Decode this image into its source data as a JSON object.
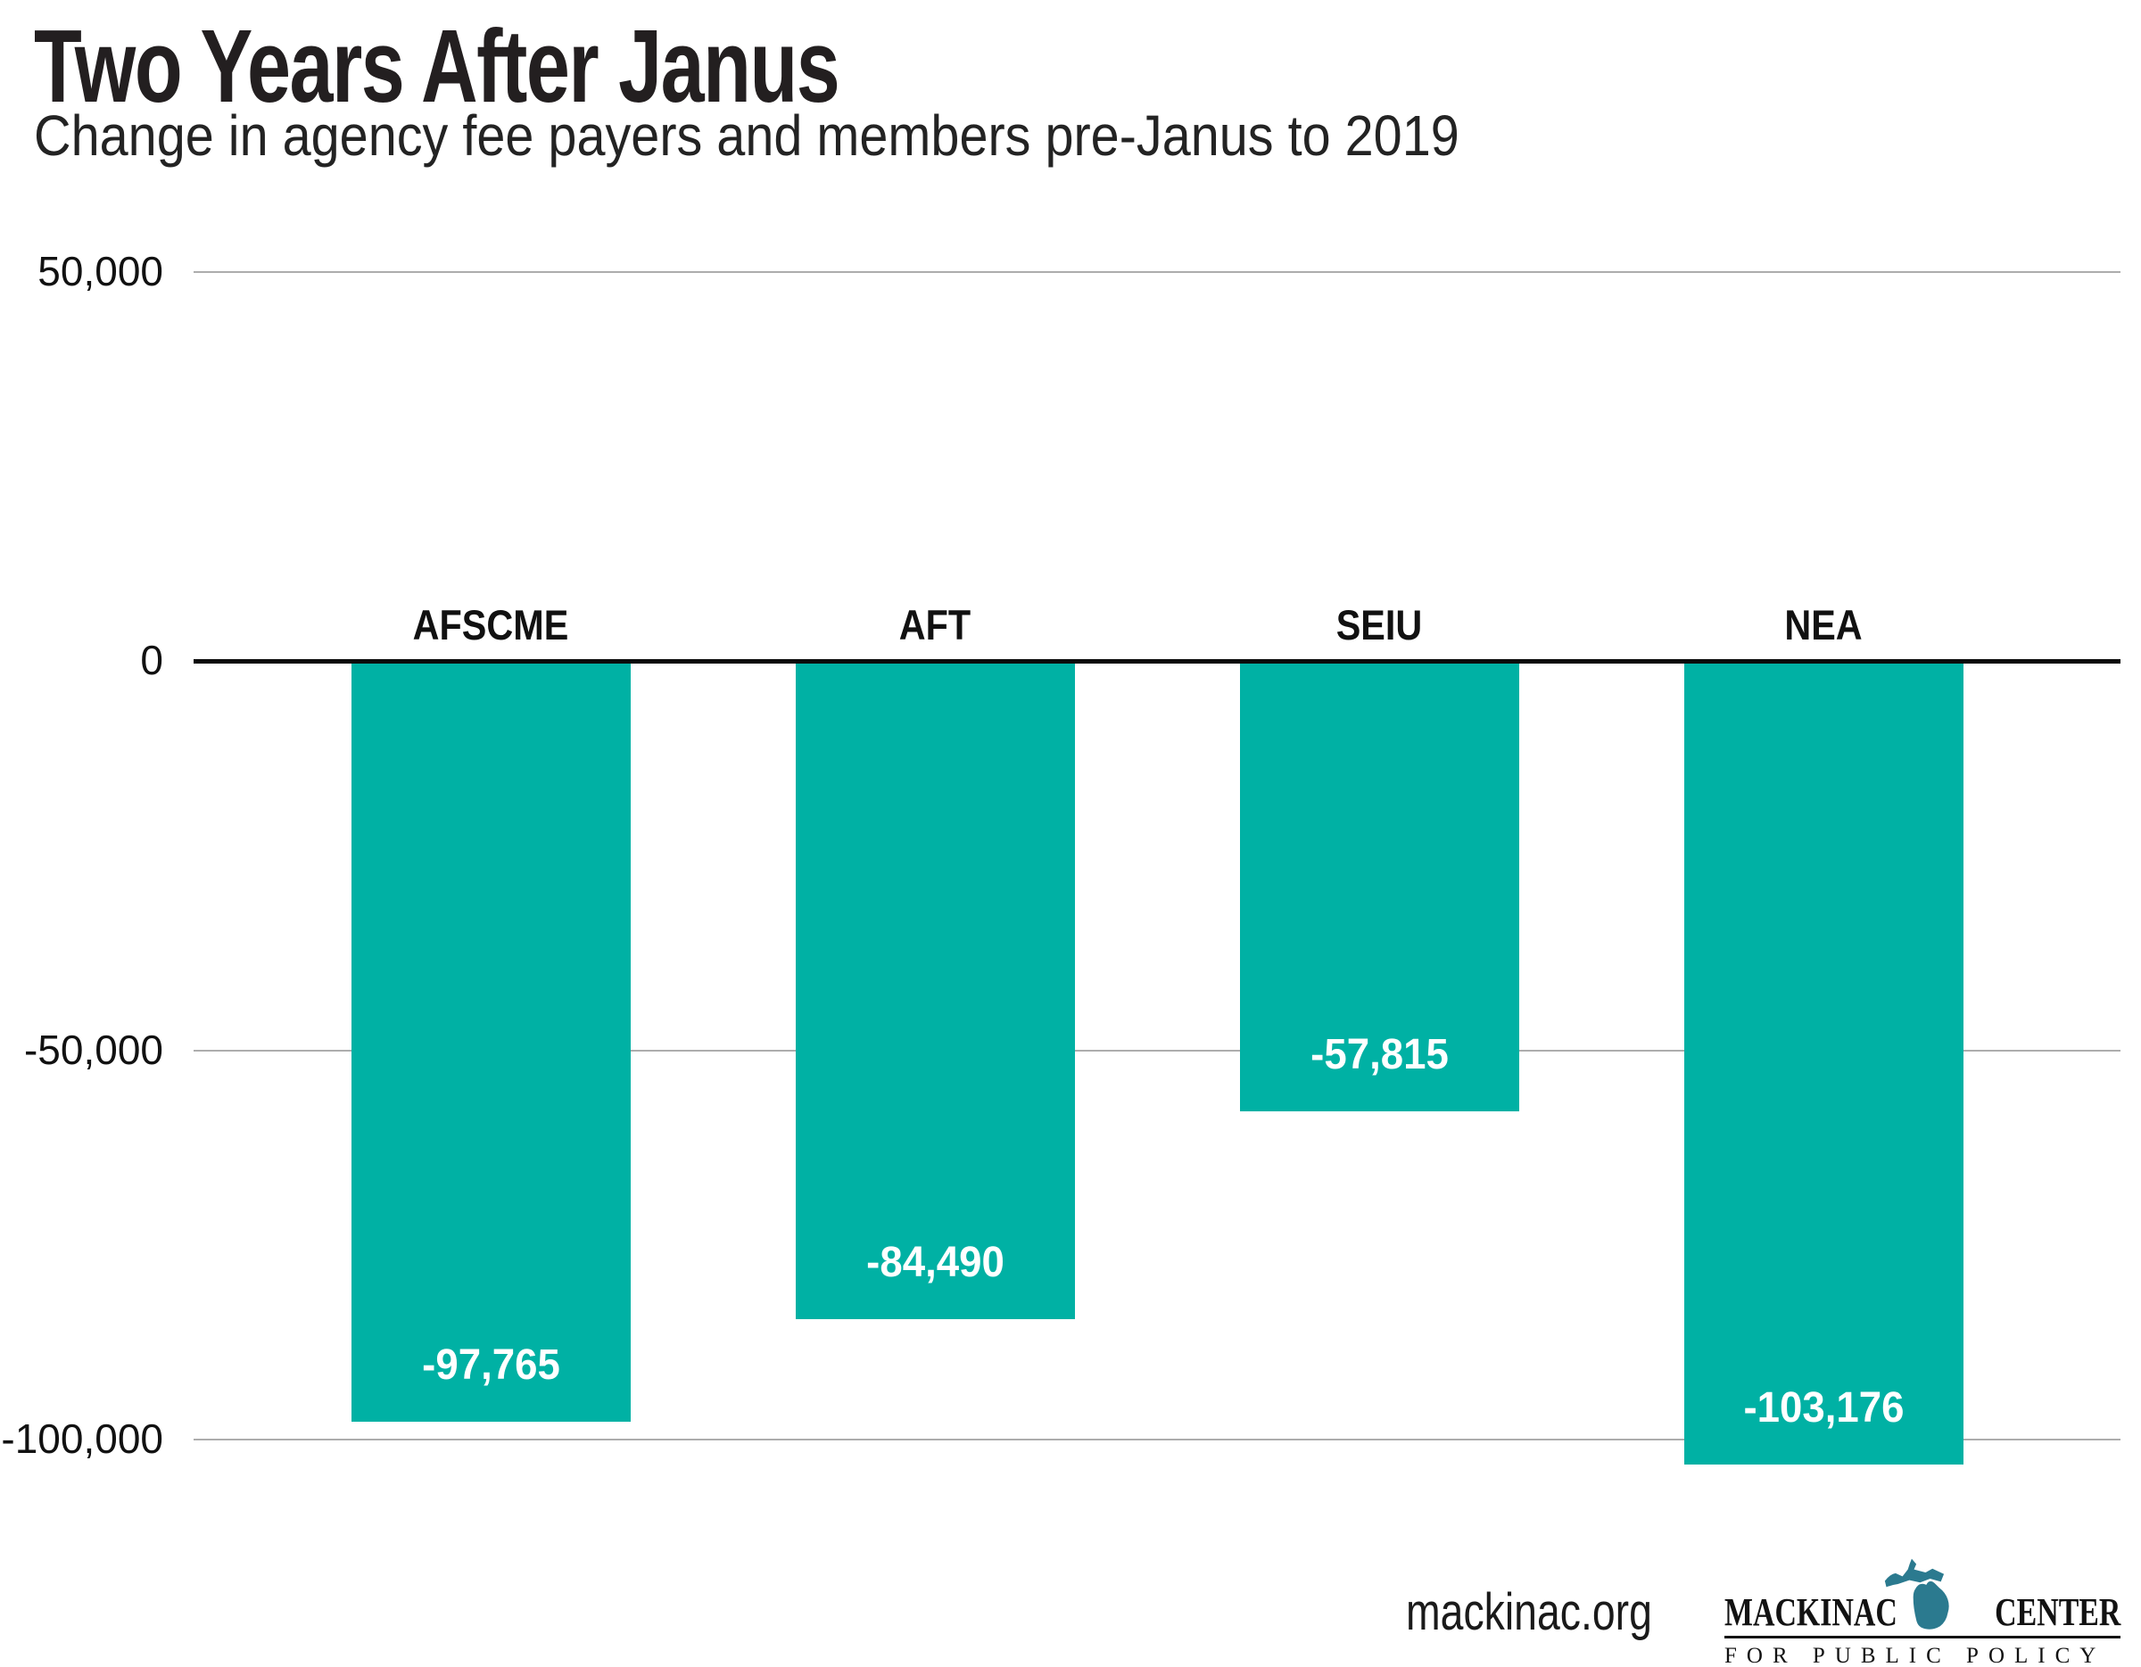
{
  "chart_data": {
    "type": "bar",
    "title": "Two Years After Janus",
    "subtitle": "Change in agency fee payers and members pre-Janus to 2019",
    "categories": [
      "AFSCME",
      "AFT",
      "SEIU",
      "NEA"
    ],
    "values": [
      -97765,
      -84490,
      -57815,
      -103176
    ],
    "value_labels": [
      "-97,765",
      "-84,490",
      "-57,815",
      "-103,176"
    ],
    "y_ticks": [
      {
        "value": 50000,
        "label": "50,000"
      },
      {
        "value": 0,
        "label": "0"
      },
      {
        "value": -50000,
        "label": "-50,000"
      },
      {
        "value": -100000,
        "label": "-100,000"
      }
    ],
    "ylim": [
      -110000,
      50000
    ],
    "xlabel": "",
    "ylabel": "",
    "grid": true,
    "legend": false,
    "bar_color": "#00B1A4",
    "value_label_color": "#FFFFFF",
    "category_label_color": "#111111",
    "gridline_color": "#ADADAD",
    "zero_line_color": "#0B0B0B"
  },
  "footer": {
    "site": "mackinac.org",
    "logo": {
      "word1": "MACKINAC",
      "word2": "CENTER",
      "tagline": "FOR PUBLIC POLICY",
      "michigan_color": "#2B7A8F",
      "text_color": "#121212"
    }
  }
}
